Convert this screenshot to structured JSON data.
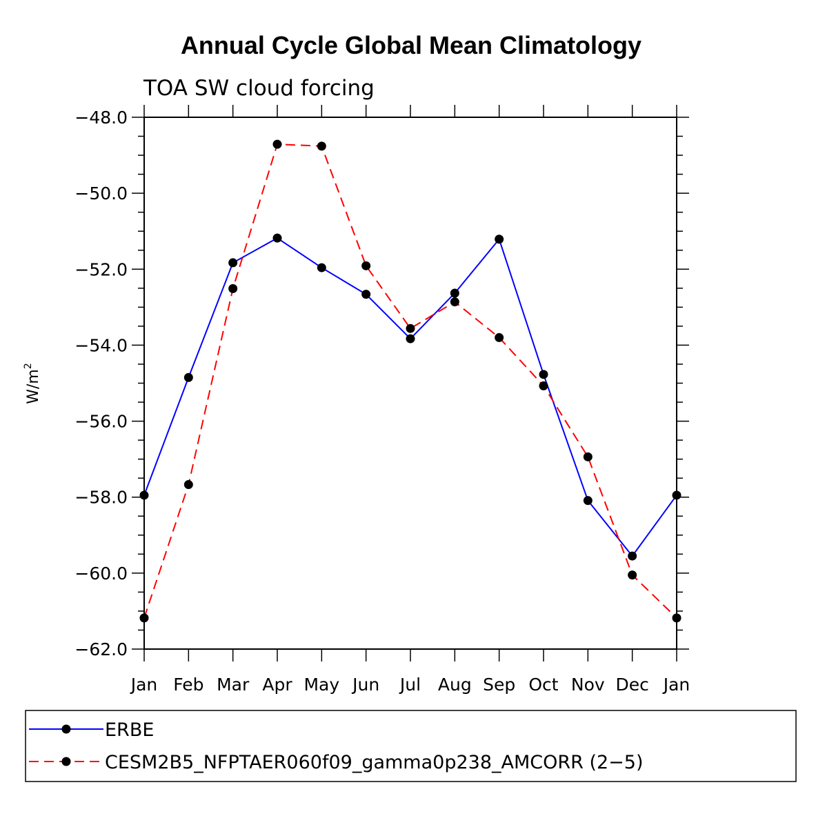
{
  "chart_data": {
    "type": "line",
    "title": "Annual Cycle Global Mean Climatology",
    "subtitle": "TOA SW cloud forcing",
    "xlabel": "",
    "ylabel": "W/m",
    "ylabel_superscript": "2",
    "categories": [
      "Jan",
      "Feb",
      "Mar",
      "Apr",
      "May",
      "Jun",
      "Jul",
      "Aug",
      "Sep",
      "Oct",
      "Nov",
      "Dec",
      "Jan"
    ],
    "ylim": [
      -62.0,
      -48.0
    ],
    "yticks": [
      -48.0,
      -50.0,
      -52.0,
      -54.0,
      -56.0,
      -58.0,
      -60.0,
      -62.0
    ],
    "ytick_labels": [
      "−48.0",
      "−50.0",
      "−52.0",
      "−54.0",
      "−56.0",
      "−58.0",
      "−60.0",
      "−62.0"
    ],
    "series": [
      {
        "name": "ERBE",
        "color": "#0000ff",
        "dash": "solid",
        "values": [
          -57.95,
          -54.85,
          -51.83,
          -51.18,
          -51.96,
          -52.66,
          -53.83,
          -52.63,
          -51.21,
          -54.77,
          -58.09,
          -59.55,
          -57.95
        ]
      },
      {
        "name": "CESM2B5_NFPTAER060f09_gamma0p238_AMCORR (2−5)",
        "color": "#ff0000",
        "dash": "dashed",
        "values": [
          -61.18,
          -57.67,
          -52.51,
          -48.71,
          -48.76,
          -51.91,
          -53.56,
          -52.86,
          -53.8,
          -55.07,
          -56.94,
          -60.05,
          -61.18
        ]
      }
    ],
    "legend": "bottom"
  }
}
